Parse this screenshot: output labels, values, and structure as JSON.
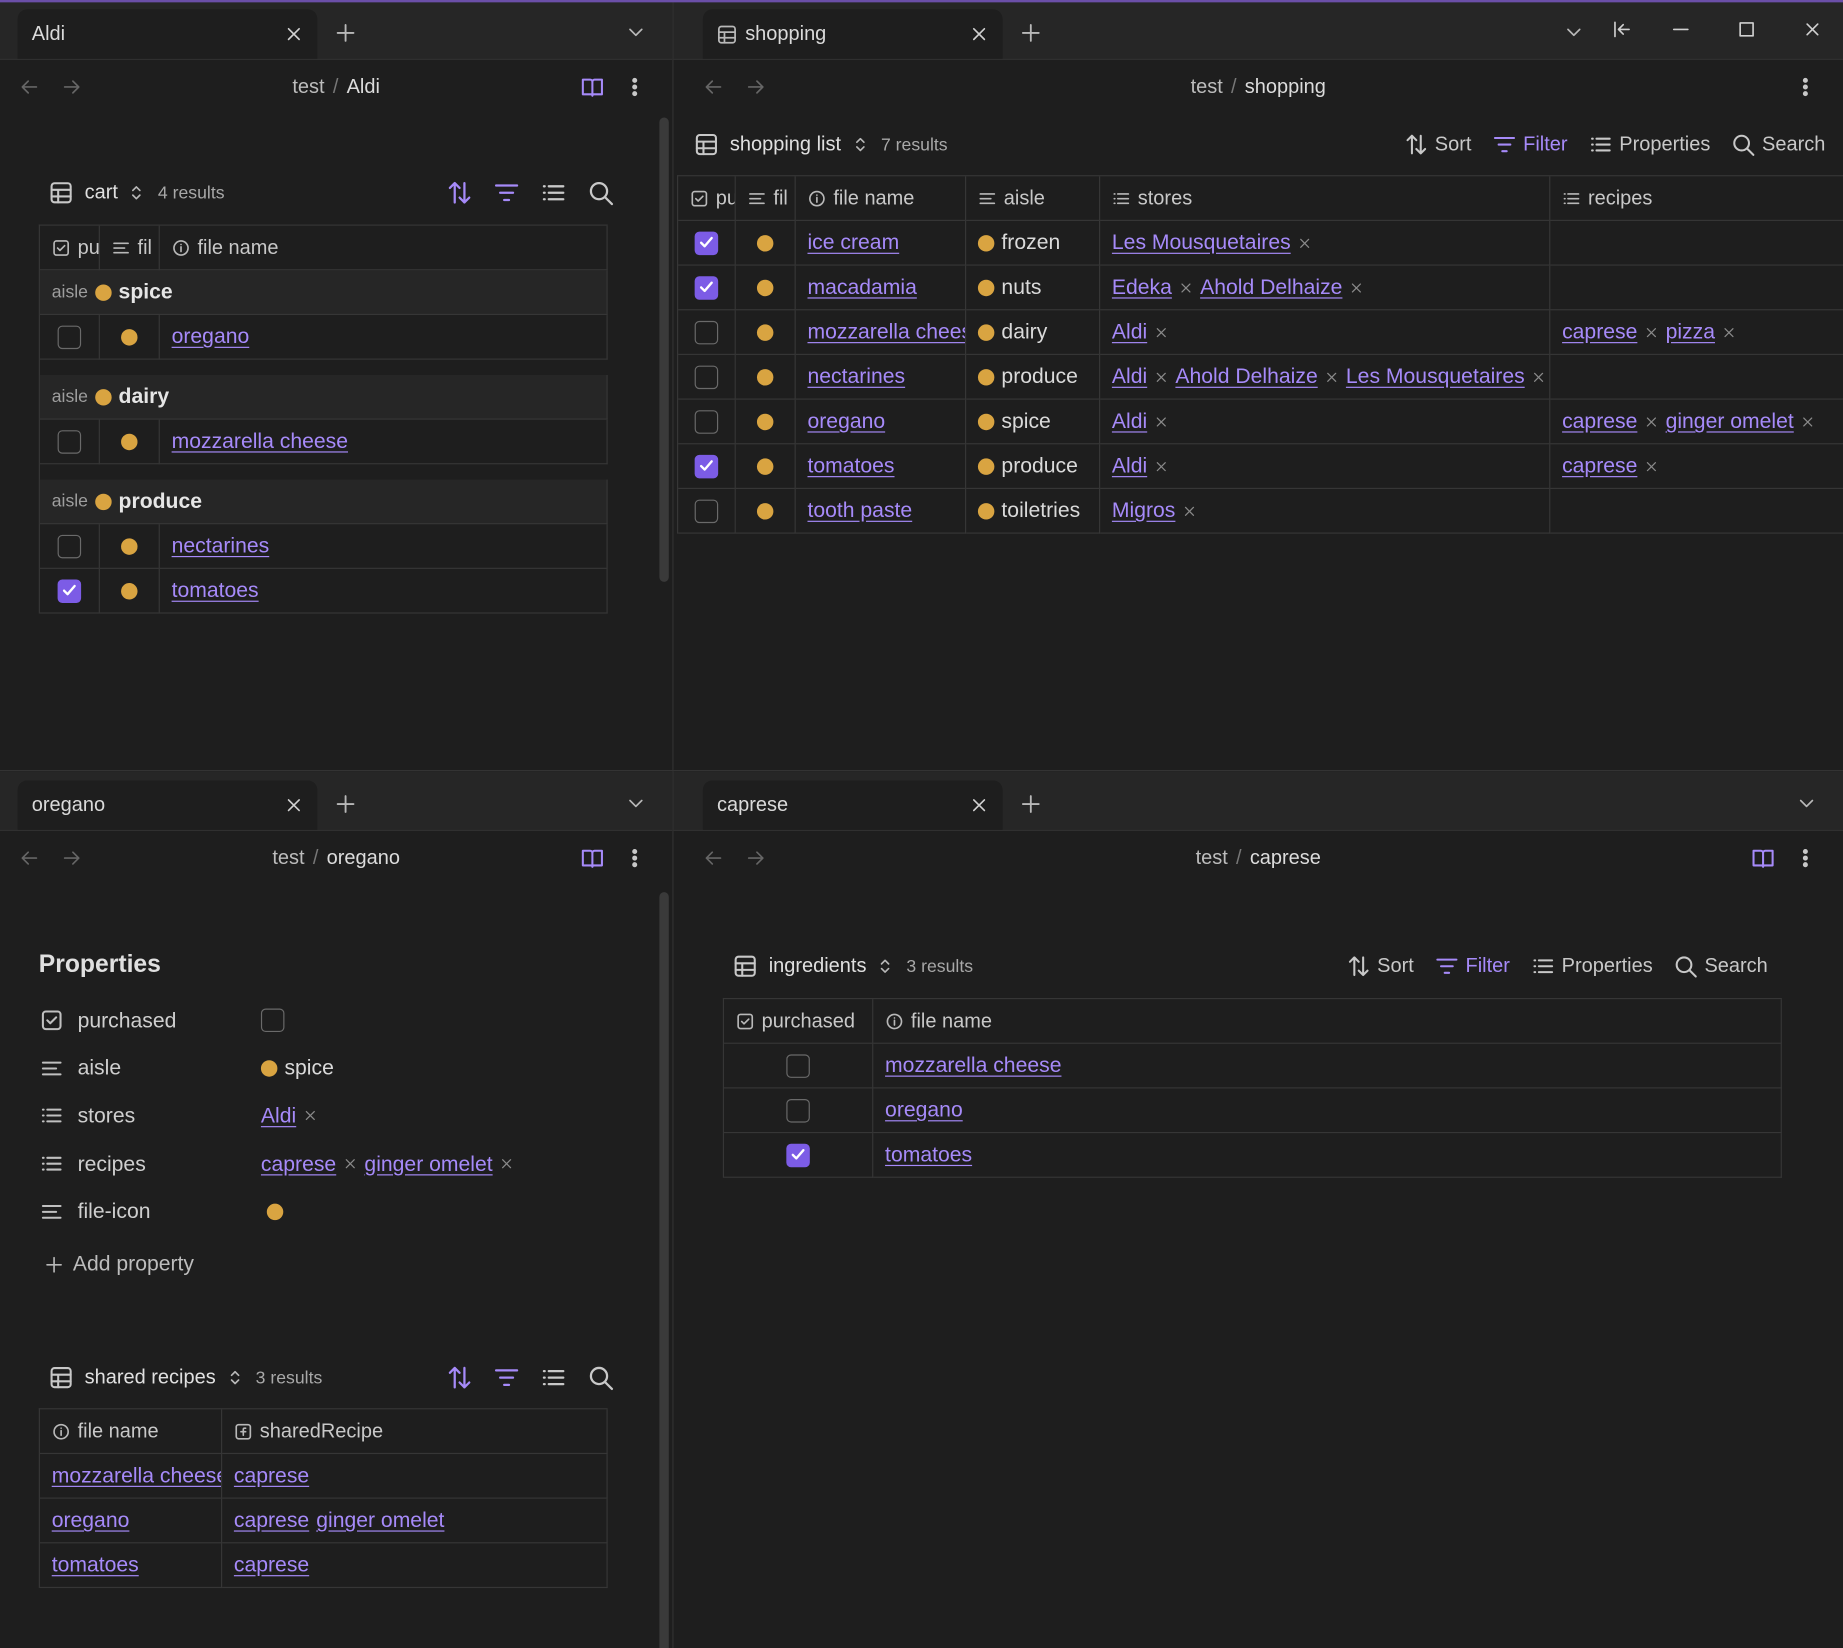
{
  "panes": [
    {
      "tab": "Aldi",
      "breadcrumb": [
        "test",
        "/",
        "Aldi"
      ],
      "base": {
        "view": "cart",
        "results": "4 results",
        "columns": [
          "pu",
          "fil",
          "file name"
        ],
        "group_label": "aisle",
        "groups": [
          {
            "name": "spice",
            "rows": [
              {
                "purchased": false,
                "file_name": "oregano"
              }
            ]
          },
          {
            "name": "dairy",
            "rows": [
              {
                "purchased": false,
                "file_name": "mozzarella cheese"
              }
            ]
          },
          {
            "name": "produce",
            "rows": [
              {
                "purchased": false,
                "file_name": "nectarines"
              },
              {
                "purchased": true,
                "file_name": "tomatoes"
              }
            ]
          }
        ]
      }
    },
    {
      "tab": "shopping",
      "breadcrumb": [
        "test",
        "/",
        "shopping"
      ],
      "base": {
        "view": "shopping list",
        "results": "7 results",
        "toolbar": [
          "Sort",
          "Filter",
          "Properties",
          "Search"
        ],
        "columns": [
          "pu",
          "fil",
          "file name",
          "aisle",
          "stores",
          "recipes"
        ],
        "rows": [
          {
            "purchased": true,
            "file_name": "ice cream",
            "aisle": "frozen",
            "stores": [
              "Les Mousquetaires"
            ],
            "recipes": []
          },
          {
            "purchased": true,
            "file_name": "macadamia",
            "aisle": "nuts",
            "stores": [
              "Edeka",
              "Ahold Delhaize"
            ],
            "recipes": []
          },
          {
            "purchased": false,
            "file_name": "mozzarella cheese",
            "aisle": "dairy",
            "stores": [
              "Aldi"
            ],
            "recipes": [
              "caprese",
              "pizza"
            ]
          },
          {
            "purchased": false,
            "file_name": "nectarines",
            "aisle": "produce",
            "stores": [
              "Aldi",
              "Ahold Delhaize",
              "Les Mousquetaires"
            ],
            "recipes": []
          },
          {
            "purchased": false,
            "file_name": "oregano",
            "aisle": "spice",
            "stores": [
              "Aldi"
            ],
            "recipes": [
              "caprese",
              "ginger omelet"
            ]
          },
          {
            "purchased": true,
            "file_name": "tomatoes",
            "aisle": "produce",
            "stores": [
              "Aldi"
            ],
            "recipes": [
              "caprese"
            ]
          },
          {
            "purchased": false,
            "file_name": "tooth paste",
            "aisle": "toiletries",
            "stores": [
              "Migros"
            ],
            "recipes": []
          }
        ]
      }
    },
    {
      "tab": "oregano",
      "breadcrumb": [
        "test",
        "/",
        "oregano"
      ],
      "properties": {
        "title": "Properties",
        "items": [
          {
            "name": "purchased",
            "value": false
          },
          {
            "name": "aisle",
            "value": "spice"
          },
          {
            "name": "stores",
            "value": [
              "Aldi"
            ]
          },
          {
            "name": "recipes",
            "value": [
              "caprese",
              "ginger omelet"
            ]
          },
          {
            "name": "file-icon"
          }
        ],
        "add": "Add property"
      },
      "base": {
        "view": "shared recipes",
        "results": "3 results",
        "columns": [
          "file name",
          "sharedRecipe"
        ],
        "rows": [
          {
            "file_name": "mozzarella cheese",
            "sharedRecipe": [
              "caprese"
            ]
          },
          {
            "file_name": "oregano",
            "sharedRecipe": [
              "caprese",
              "ginger omelet"
            ]
          },
          {
            "file_name": "tomatoes",
            "sharedRecipe": [
              "caprese"
            ]
          }
        ]
      }
    },
    {
      "tab": "caprese",
      "breadcrumb": [
        "test",
        "/",
        "caprese"
      ],
      "base": {
        "view": "ingredients",
        "results": "3 results",
        "toolbar": [
          "Sort",
          "Filter",
          "Properties",
          "Search"
        ],
        "columns": [
          "purchased",
          "file name"
        ],
        "rows": [
          {
            "purchased": false,
            "file_name": "mozzarella cheese"
          },
          {
            "purchased": false,
            "file_name": "oregano"
          },
          {
            "purchased": true,
            "file_name": "tomatoes"
          }
        ]
      }
    }
  ]
}
